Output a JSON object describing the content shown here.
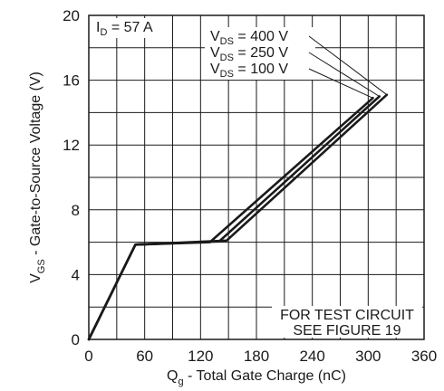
{
  "chart_data": {
    "type": "line",
    "xlabel": {
      "main": "Q",
      "sub": "g",
      "rest": " - Total Gate Charge (nC)"
    },
    "ylabel": {
      "main": "V",
      "sub": "GS",
      "rest": " - Gate-to-Source Voltage (V)"
    },
    "xlim": [
      0,
      360
    ],
    "ylim": [
      0,
      20
    ],
    "xticks": [
      0,
      60,
      120,
      180,
      240,
      300,
      360
    ],
    "yticks": [
      0,
      4,
      8,
      12,
      16,
      20
    ],
    "grid": true,
    "condition": {
      "main": "I",
      "sub": "D",
      "rest": " = 57 A"
    },
    "series": [
      {
        "name": "400 V",
        "legend": {
          "main": "V",
          "sub": "DS",
          "rest": " = 400 V"
        },
        "points": [
          [
            0,
            0
          ],
          [
            50,
            5.85
          ],
          [
            148,
            6.1
          ],
          [
            320,
            15.1
          ]
        ]
      },
      {
        "name": "250 V",
        "legend": {
          "main": "V",
          "sub": "DS",
          "rest": " = 250 V"
        },
        "points": [
          [
            0,
            0
          ],
          [
            50,
            5.85
          ],
          [
            140,
            6.05
          ],
          [
            312,
            15.0
          ]
        ]
      },
      {
        "name": "100 V",
        "legend": {
          "main": "V",
          "sub": "DS",
          "rest": " = 100 V"
        },
        "points": [
          [
            0,
            0
          ],
          [
            50,
            5.85
          ],
          [
            130,
            6.0
          ],
          [
            305,
            14.9
          ]
        ]
      }
    ],
    "note": [
      "FOR TEST CIRCUIT",
      "SEE FIGURE 19"
    ]
  }
}
